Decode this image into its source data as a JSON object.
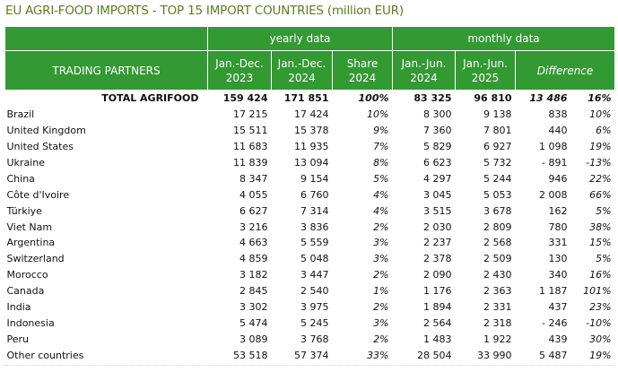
{
  "title": "EU AGRI-FOOD IMPORTS - TOP 15 IMPORT COUNTRIES (million EUR)",
  "header": {
    "group_yearly": "yearly data",
    "group_monthly": "monthly data",
    "trading_partners": "TRADING PARTNERS",
    "col1_line1": "Jan.-Dec.",
    "col1_line2": "2023",
    "col2_line1": "Jan.-Dec.",
    "col2_line2": "2024",
    "col3_line1": "Share",
    "col3_line2": "2024",
    "col4_line1": "Jan.-Jun.",
    "col4_line2": "2024",
    "col5_line1": "Jan.-Jun.",
    "col5_line2": "2025",
    "difference": "Difference"
  },
  "total": {
    "name": "TOTAL AGRIFOOD",
    "y2023": "159 424",
    "y2024": "171 851",
    "share": "100%",
    "m2024": "83 325",
    "m2025": "96 810",
    "diff": "13 486",
    "diff_pct": "16%"
  },
  "rows": [
    {
      "name": "Brazil",
      "y2023": "17 215",
      "y2024": "17 424",
      "share": "10%",
      "m2024": "8 300",
      "m2025": "9 138",
      "diff": "838",
      "diff_pct": "10%"
    },
    {
      "name": "United Kingdom",
      "y2023": "15 511",
      "y2024": "15 378",
      "share": "9%",
      "m2024": "7 360",
      "m2025": "7 801",
      "diff": "440",
      "diff_pct": "6%"
    },
    {
      "name": "United States",
      "y2023": "11 683",
      "y2024": "11 935",
      "share": "7%",
      "m2024": "5 829",
      "m2025": "6 927",
      "diff": "1 098",
      "diff_pct": "19%"
    },
    {
      "name": "Ukraine",
      "y2023": "11 839",
      "y2024": "13 094",
      "share": "8%",
      "m2024": "6 623",
      "m2025": "5 732",
      "diff": "-  891",
      "diff_pct": "-13%"
    },
    {
      "name": "China",
      "y2023": "8 347",
      "y2024": "9 154",
      "share": "5%",
      "m2024": "4 297",
      "m2025": "5 244",
      "diff": "946",
      "diff_pct": "22%"
    },
    {
      "name": "Côte d'Ivoire",
      "y2023": "4 055",
      "y2024": "6 760",
      "share": "4%",
      "m2024": "3 045",
      "m2025": "5 053",
      "diff": "2 008",
      "diff_pct": "66%"
    },
    {
      "name": "Türkiye",
      "y2023": "6 627",
      "y2024": "7 314",
      "share": "4%",
      "m2024": "3 515",
      "m2025": "3 678",
      "diff": "162",
      "diff_pct": "5%"
    },
    {
      "name": "Viet Nam",
      "y2023": "3 216",
      "y2024": "3 836",
      "share": "2%",
      "m2024": "2 030",
      "m2025": "2 809",
      "diff": "780",
      "diff_pct": "38%"
    },
    {
      "name": "Argentina",
      "y2023": "4 663",
      "y2024": "5 559",
      "share": "3%",
      "m2024": "2 237",
      "m2025": "2 568",
      "diff": "331",
      "diff_pct": "15%"
    },
    {
      "name": "Switzerland",
      "y2023": "4 859",
      "y2024": "5 048",
      "share": "3%",
      "m2024": "2 378",
      "m2025": "2 509",
      "diff": "130",
      "diff_pct": "5%"
    },
    {
      "name": "Morocco",
      "y2023": "3 182",
      "y2024": "3 447",
      "share": "2%",
      "m2024": "2 090",
      "m2025": "2 430",
      "diff": "340",
      "diff_pct": "16%"
    },
    {
      "name": "Canada",
      "y2023": "2 845",
      "y2024": "2 540",
      "share": "1%",
      "m2024": "1 176",
      "m2025": "2 363",
      "diff": "1 187",
      "diff_pct": "101%"
    },
    {
      "name": "India",
      "y2023": "3 302",
      "y2024": "3 975",
      "share": "2%",
      "m2024": "1 894",
      "m2025": "2 331",
      "diff": "437",
      "diff_pct": "23%"
    },
    {
      "name": "Indonesia",
      "y2023": "5 474",
      "y2024": "5 245",
      "share": "3%",
      "m2024": "2 564",
      "m2025": "2 318",
      "diff": "-  246",
      "diff_pct": "-10%"
    },
    {
      "name": "Peru",
      "y2023": "3 089",
      "y2024": "3 768",
      "share": "2%",
      "m2024": "1 483",
      "m2025": "1 922",
      "diff": "439",
      "diff_pct": "30%"
    },
    {
      "name": "Other countries",
      "y2023": "53 518",
      "y2024": "57 374",
      "share": "33%",
      "m2024": "28 504",
      "m2025": "33 990",
      "diff": "5 487",
      "diff_pct": "19%"
    }
  ],
  "colors": {
    "header_bg": "#339933",
    "header_text": "#ffffff",
    "title": "#5b7d1e"
  }
}
